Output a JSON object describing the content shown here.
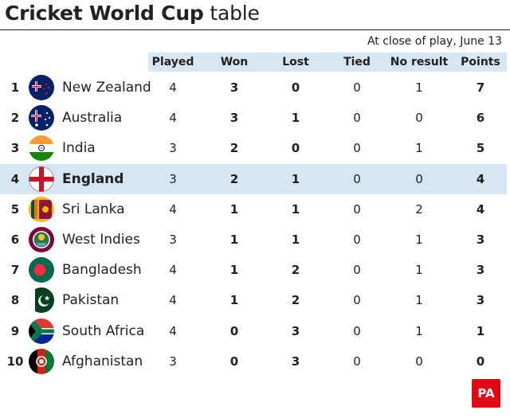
{
  "title": {
    "strong": "Cricket World Cup",
    "light": "table"
  },
  "subtitle": "At close of play, June 13",
  "columns": [
    "Played",
    "Won",
    "Lost",
    "Tied",
    "No result",
    "Points"
  ],
  "rows": [
    {
      "rank": "1",
      "team": "New Zealand",
      "flag": "new-zealand-flag",
      "played": "4",
      "won": "3",
      "lost": "0",
      "tied": "0",
      "no_result": "1",
      "points": "7"
    },
    {
      "rank": "2",
      "team": "Australia",
      "flag": "australia-flag",
      "played": "4",
      "won": "3",
      "lost": "1",
      "tied": "0",
      "no_result": "0",
      "points": "6"
    },
    {
      "rank": "3",
      "team": "India",
      "flag": "india-flag",
      "played": "3",
      "won": "2",
      "lost": "0",
      "tied": "0",
      "no_result": "1",
      "points": "5"
    },
    {
      "rank": "4",
      "team": "England",
      "flag": "england-flag",
      "played": "3",
      "won": "2",
      "lost": "1",
      "tied": "0",
      "no_result": "0",
      "points": "4",
      "highlight": true
    },
    {
      "rank": "5",
      "team": "Sri Lanka",
      "flag": "sri-lanka-flag",
      "played": "4",
      "won": "1",
      "lost": "1",
      "tied": "0",
      "no_result": "2",
      "points": "4"
    },
    {
      "rank": "6",
      "team": "West Indies",
      "flag": "west-indies-flag",
      "played": "3",
      "won": "1",
      "lost": "1",
      "tied": "0",
      "no_result": "1",
      "points": "3"
    },
    {
      "rank": "7",
      "team": "Bangladesh",
      "flag": "bangladesh-flag",
      "played": "4",
      "won": "1",
      "lost": "2",
      "tied": "0",
      "no_result": "1",
      "points": "3"
    },
    {
      "rank": "8",
      "team": "Pakistan",
      "flag": "pakistan-flag",
      "played": "4",
      "won": "1",
      "lost": "2",
      "tied": "0",
      "no_result": "1",
      "points": "3"
    },
    {
      "rank": "9",
      "team": "South Africa",
      "flag": "south-africa-flag",
      "played": "4",
      "won": "0",
      "lost": "3",
      "tied": "0",
      "no_result": "1",
      "points": "1"
    },
    {
      "rank": "10",
      "team": "Afghanistan",
      "flag": "afghanistan-flag",
      "played": "3",
      "won": "0",
      "lost": "3",
      "tied": "0",
      "no_result": "0",
      "points": "0"
    }
  ],
  "colors": {
    "header_band": "#d6e6f2",
    "highlight_row": "#d6e6f2",
    "logo_red": "#e30613"
  },
  "logo": "PA"
}
